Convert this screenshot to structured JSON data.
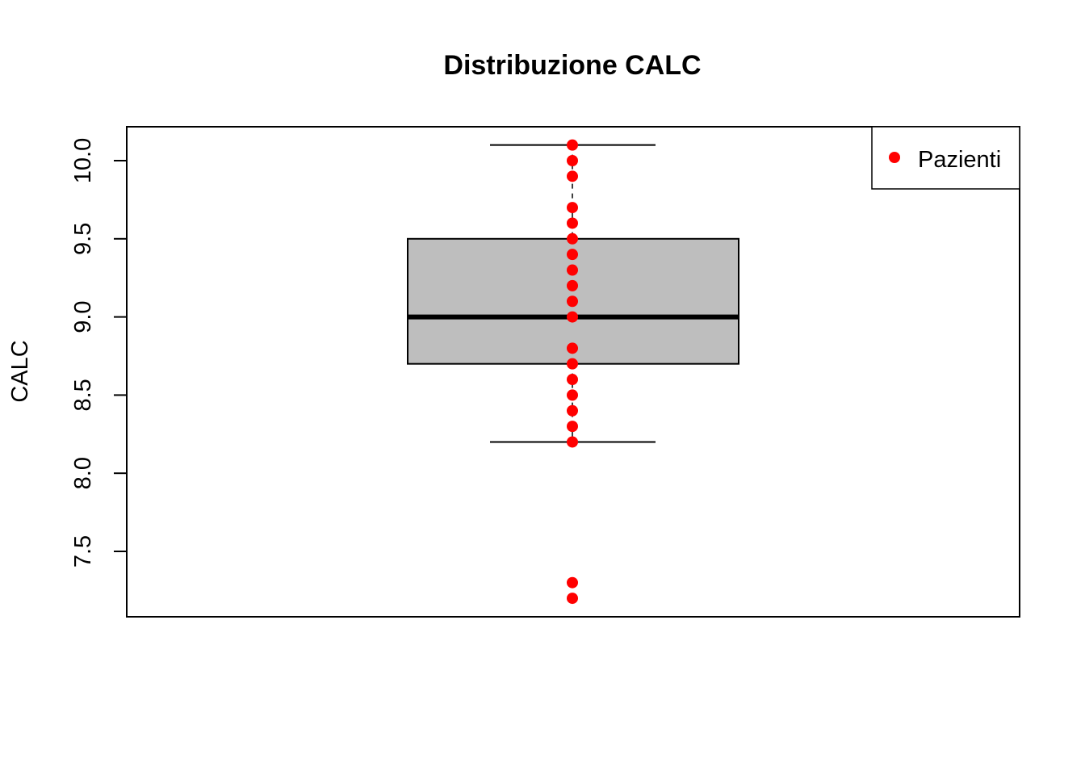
{
  "chart_data": {
    "type": "boxplot",
    "title": "Distribuzione CALC",
    "ylabel": "CALC",
    "xlabel": "",
    "ylim": [
      7.15,
      10.2
    ],
    "yticks": [
      {
        "value": 7.5,
        "label": "7.5"
      },
      {
        "value": 8.0,
        "label": "8.0"
      },
      {
        "value": 8.5,
        "label": "8.5"
      },
      {
        "value": 9.0,
        "label": "9.0"
      },
      {
        "value": 9.5,
        "label": "9.5"
      },
      {
        "value": 10.0,
        "label": "10.0"
      }
    ],
    "box": {
      "whisker_low": 8.2,
      "q1": 8.7,
      "median": 9.0,
      "q3": 9.5,
      "whisker_high": 10.1,
      "fill": "#bebebe"
    },
    "series": [
      {
        "name": "Pazienti",
        "color": "#ff0000",
        "values": [
          7.2,
          7.3,
          8.2,
          8.3,
          8.4,
          8.5,
          8.6,
          8.7,
          8.8,
          9.0,
          9.1,
          9.2,
          9.3,
          9.4,
          9.5,
          9.6,
          9.7,
          9.9,
          10.0,
          10.1
        ]
      }
    ],
    "legend": {
      "position": "top-right",
      "label": "Pazienti"
    },
    "grid": false
  }
}
